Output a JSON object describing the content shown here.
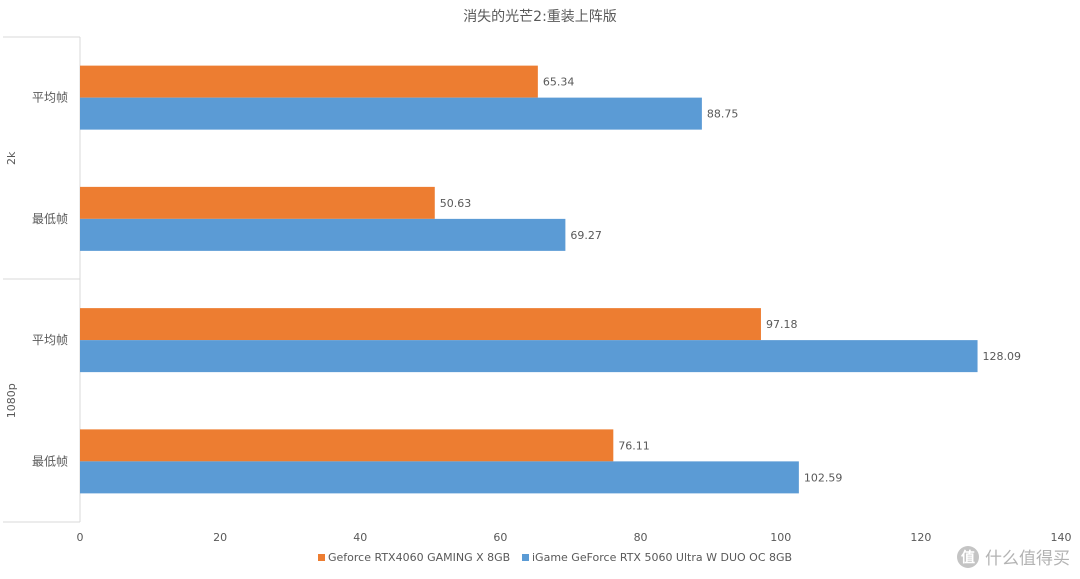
{
  "chart_data": {
    "type": "bar",
    "orientation": "horizontal",
    "title": "消失的光芒2:重装上阵版",
    "groups": [
      {
        "label": "2k",
        "categories": [
          "平均帧",
          "最低帧"
        ]
      },
      {
        "label": "1080p",
        "categories": [
          "平均帧",
          "最低帧"
        ]
      }
    ],
    "categories": [
      "2k 平均帧",
      "2k 最低帧",
      "1080p 平均帧",
      "1080p 最低帧"
    ],
    "series": [
      {
        "name": "Geforce RTX4060 GAMING X 8GB",
        "color": "#ED7D31",
        "values": [
          65.34,
          50.63,
          97.18,
          76.11
        ]
      },
      {
        "name": "iGame GeForce RTX 5060 Ultra W DUO OC 8GB",
        "color": "#5B9BD5",
        "values": [
          88.75,
          69.27,
          128.09,
          102.59
        ]
      }
    ],
    "data_labels": {
      "Geforce RTX4060 GAMING X 8GB": [
        "65.34",
        "50.63",
        "97.18",
        "76.11"
      ],
      "iGame GeForce RTX 5060 Ultra W DUO OC 8GB": [
        "88.75",
        "69.27",
        "128.09",
        "102.59"
      ]
    },
    "xlim": [
      0,
      140
    ],
    "xticks": [
      "0",
      "20",
      "40",
      "60",
      "80",
      "100",
      "120",
      "140"
    ],
    "xlabel": "",
    "ylabel": "",
    "grid": false,
    "legend_position": "bottom"
  },
  "watermark": {
    "icon_glyph": "值",
    "text": "什么值得买"
  }
}
